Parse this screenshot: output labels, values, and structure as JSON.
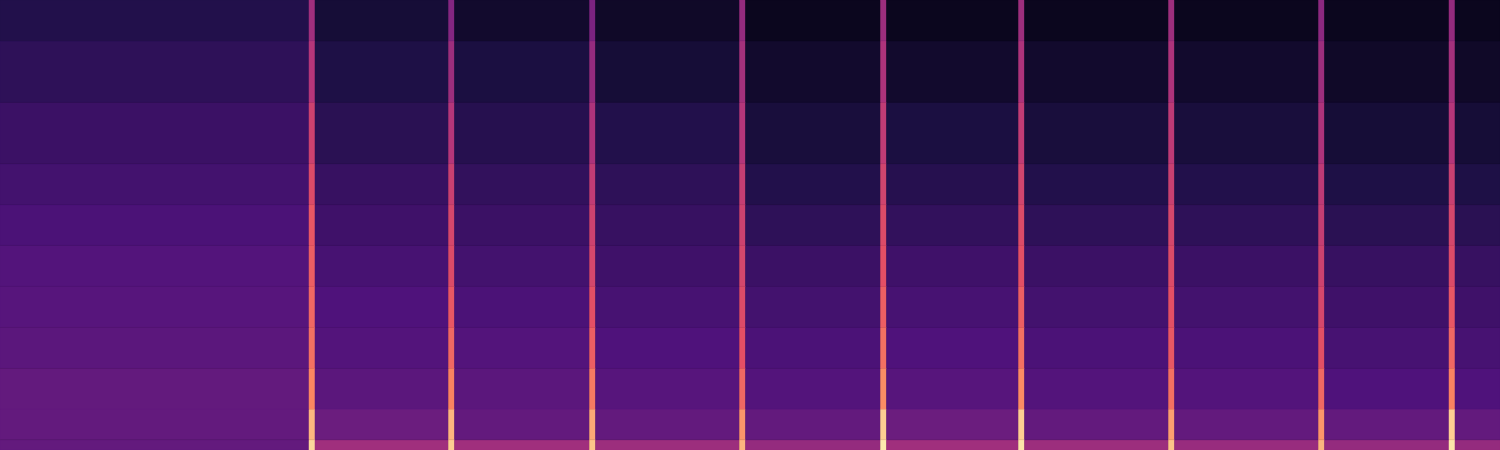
{
  "chart_data": {
    "type": "heatmap",
    "tick_labels": false,
    "xlim": [
      0,
      10
    ],
    "ylim": [
      0,
      22
    ],
    "x_edges": [
      0,
      2.06,
      2.1,
      2.99,
      3.03,
      3.93,
      3.97,
      4.93,
      4.97,
      5.87,
      5.91,
      6.79,
      6.83,
      7.79,
      7.83,
      8.79,
      8.83,
      9.66,
      9.7,
      10
    ],
    "y_edges": [
      0,
      0.5,
      2,
      4,
      6,
      8,
      10,
      12,
      14,
      17,
      20,
      22
    ],
    "color_range": [
      0,
      1
    ],
    "cells": [
      [
        0.3,
        0.92,
        0.45,
        0.9,
        0.45,
        0.88,
        0.44,
        0.85,
        0.42,
        0.96,
        0.45,
        0.95,
        0.44,
        0.88,
        0.43,
        0.85,
        0.42,
        0.95,
        0.42
      ],
      [
        0.3,
        0.85,
        0.32,
        0.85,
        0.3,
        0.82,
        0.3,
        0.78,
        0.3,
        0.9,
        0.32,
        0.9,
        0.3,
        0.8,
        0.3,
        0.78,
        0.3,
        0.9,
        0.3
      ],
      [
        0.3,
        0.75,
        0.28,
        0.74,
        0.28,
        0.72,
        0.27,
        0.68,
        0.26,
        0.76,
        0.27,
        0.76,
        0.26,
        0.7,
        0.26,
        0.68,
        0.25,
        0.74,
        0.25
      ],
      [
        0.28,
        0.7,
        0.26,
        0.68,
        0.26,
        0.66,
        0.25,
        0.62,
        0.24,
        0.7,
        0.25,
        0.7,
        0.24,
        0.64,
        0.24,
        0.62,
        0.23,
        0.68,
        0.23
      ],
      [
        0.27,
        0.68,
        0.25,
        0.64,
        0.24,
        0.62,
        0.23,
        0.6,
        0.22,
        0.66,
        0.23,
        0.66,
        0.22,
        0.62,
        0.22,
        0.58,
        0.21,
        0.64,
        0.21
      ],
      [
        0.26,
        0.66,
        0.23,
        0.6,
        0.22,
        0.58,
        0.21,
        0.58,
        0.2,
        0.62,
        0.21,
        0.62,
        0.2,
        0.6,
        0.2,
        0.56,
        0.19,
        0.6,
        0.19
      ],
      [
        0.24,
        0.64,
        0.21,
        0.58,
        0.2,
        0.56,
        0.19,
        0.56,
        0.17,
        0.6,
        0.18,
        0.6,
        0.17,
        0.58,
        0.17,
        0.54,
        0.16,
        0.58,
        0.16
      ],
      [
        0.22,
        0.6,
        0.19,
        0.55,
        0.18,
        0.53,
        0.17,
        0.54,
        0.14,
        0.57,
        0.15,
        0.57,
        0.14,
        0.55,
        0.14,
        0.52,
        0.13,
        0.55,
        0.13
      ],
      [
        0.2,
        0.56,
        0.16,
        0.5,
        0.15,
        0.48,
        0.14,
        0.5,
        0.11,
        0.53,
        0.12,
        0.53,
        0.11,
        0.52,
        0.11,
        0.48,
        0.1,
        0.5,
        0.1
      ],
      [
        0.17,
        0.5,
        0.13,
        0.44,
        0.12,
        0.42,
        0.1,
        0.46,
        0.08,
        0.48,
        0.08,
        0.48,
        0.08,
        0.48,
        0.08,
        0.44,
        0.07,
        0.46,
        0.07
      ],
      [
        0.14,
        0.45,
        0.1,
        0.38,
        0.08,
        0.36,
        0.07,
        0.42,
        0.05,
        0.44,
        0.05,
        0.44,
        0.05,
        0.44,
        0.05,
        0.4,
        0.05,
        0.42,
        0.05
      ]
    ]
  }
}
